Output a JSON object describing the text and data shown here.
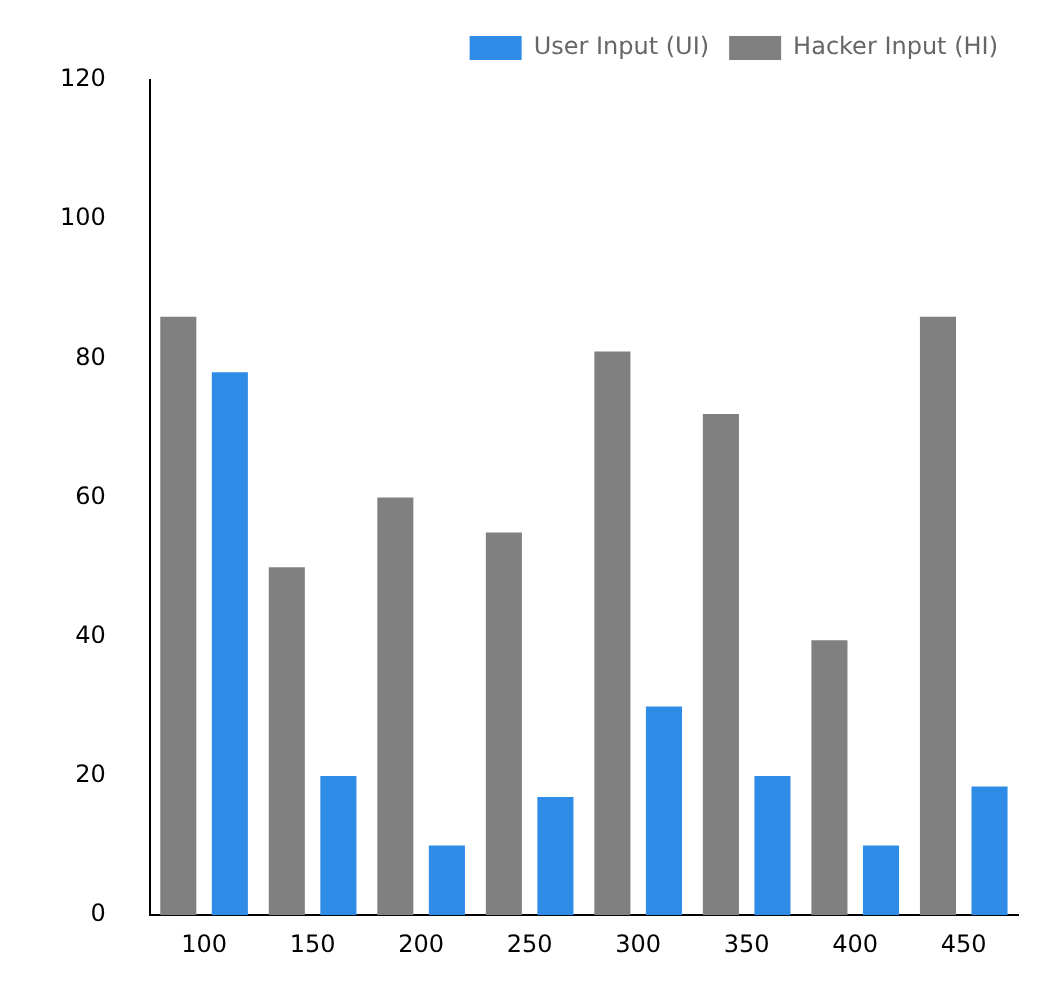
{
  "chart_data": {
    "type": "bar",
    "categories": [
      "100",
      "150",
      "200",
      "250",
      "300",
      "350",
      "400",
      "450"
    ],
    "series": [
      {
        "name": "Hacker Input (HI)",
        "color": "#808080",
        "values": [
          86,
          50,
          60,
          55,
          81,
          72,
          39.5,
          86
        ]
      },
      {
        "name": "User Input (UI)",
        "color": "#2e8be6",
        "values": [
          78,
          20,
          10,
          17,
          30,
          20,
          10,
          18.5
        ]
      }
    ],
    "ylim": [
      0,
      120
    ],
    "yticks": [
      0,
      20,
      40,
      60,
      80,
      100,
      120
    ],
    "grid": false,
    "legend": "top right"
  }
}
